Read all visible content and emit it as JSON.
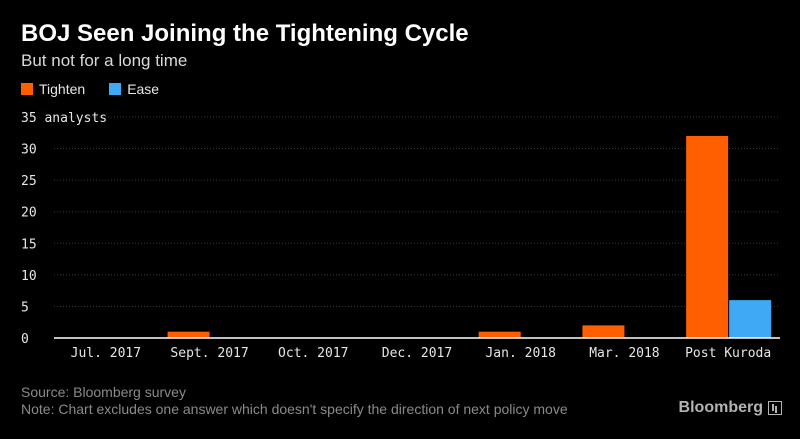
{
  "header": {
    "title": "BOJ Seen Joining the Tightening Cycle",
    "subtitle": "But not for a long time"
  },
  "legend": [
    {
      "label": "Tighten",
      "color": "#ff5f00"
    },
    {
      "label": "Ease",
      "color": "#3fa9f5"
    }
  ],
  "colors": {
    "background": "#000000",
    "grid": "#3a3a3a",
    "axis": "#ffffff",
    "tick_text": "#e6e6e6"
  },
  "chart_data": {
    "type": "bar",
    "categories": [
      "Jul. 2017",
      "Sept. 2017",
      "Oct. 2017",
      "Dec. 2017",
      "Jan. 2018",
      "Mar. 2018",
      "Post Kuroda"
    ],
    "series": [
      {
        "name": "Tighten",
        "color": "#ff5f00",
        "values": [
          0,
          1,
          0,
          0,
          1,
          2,
          32
        ]
      },
      {
        "name": "Ease",
        "color": "#3fa9f5",
        "values": [
          0,
          0,
          0,
          0,
          0,
          0,
          6
        ]
      }
    ],
    "ylim": [
      0,
      35
    ],
    "yticks": [
      0,
      5,
      10,
      15,
      20,
      25,
      30,
      35
    ],
    "ylabel": "analysts",
    "grid": true
  },
  "footer": {
    "source": "Source: Bloomberg survey",
    "note": "Note: Chart excludes one answer which doesn't specify the direction of next policy move"
  },
  "brand": "Bloomberg"
}
